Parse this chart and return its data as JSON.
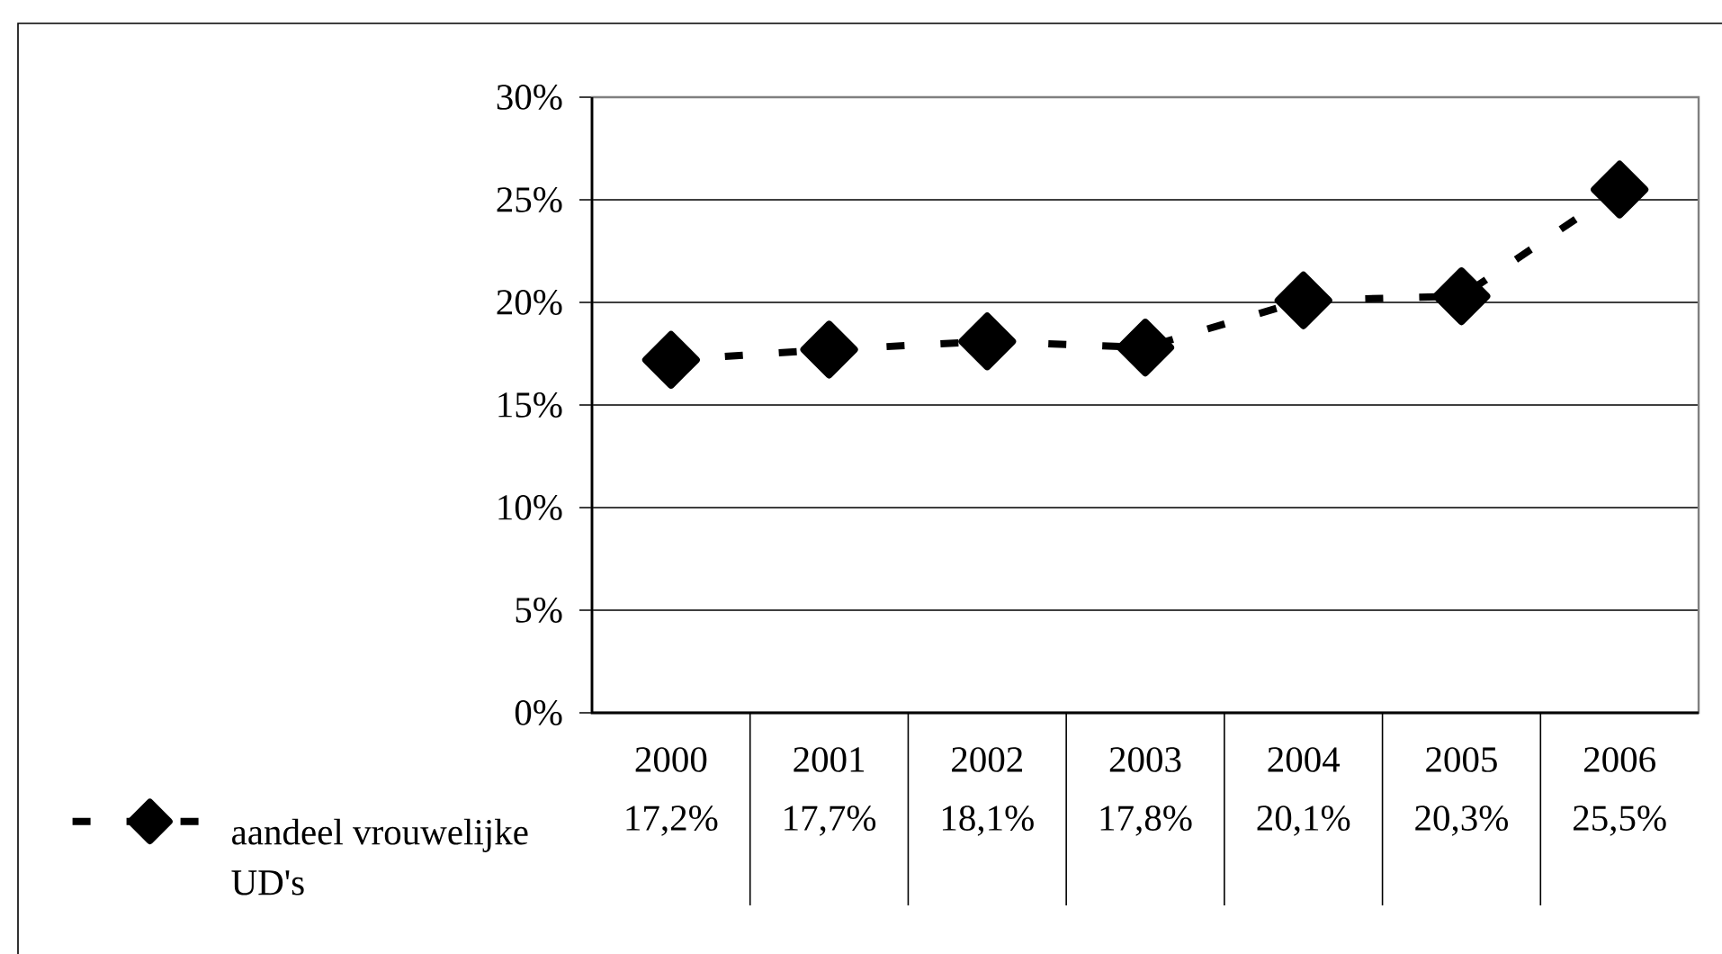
{
  "chart_data": {
    "type": "line",
    "categories": [
      "2000",
      "2001",
      "2002",
      "2003",
      "2004",
      "2005",
      "2006"
    ],
    "series": [
      {
        "name": "aandeel vrouwelijke UD's",
        "color": "#000000",
        "values": [
          17.2,
          17.7,
          18.1,
          17.8,
          20.1,
          20.3,
          25.5
        ],
        "value_labels": [
          "17,2%",
          "17,7%",
          "18,1%",
          "17,8%",
          "20,1%",
          "20,3%",
          "25,5%"
        ]
      }
    ],
    "ylim": [
      0,
      30
    ],
    "yticks": [
      {
        "value": 0,
        "label": "0%"
      },
      {
        "value": 5,
        "label": "5%"
      },
      {
        "value": 10,
        "label": "10%"
      },
      {
        "value": 15,
        "label": "15%"
      },
      {
        "value": 20,
        "label": "20%"
      },
      {
        "value": 25,
        "label": "25%"
      },
      {
        "value": 30,
        "label": "30%"
      }
    ],
    "grid": "y",
    "legend": "bottom left",
    "marker": "diamond",
    "line_style": "dashed"
  }
}
